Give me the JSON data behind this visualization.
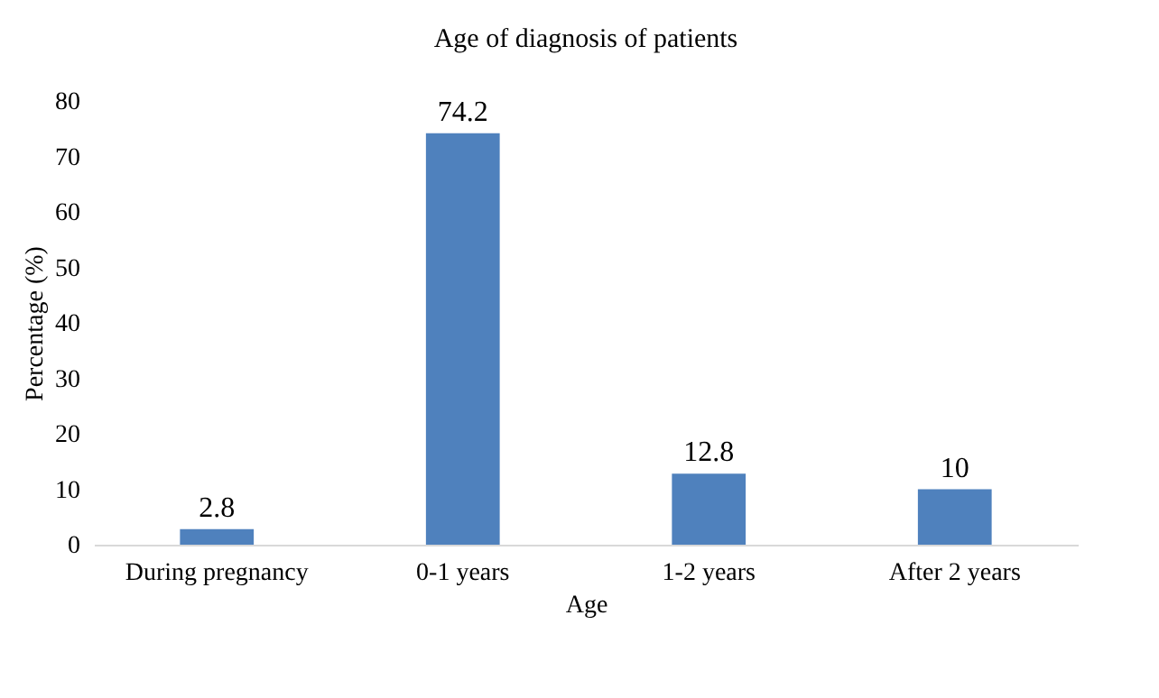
{
  "chart_data": {
    "type": "bar",
    "title": "Age of diagnosis of patients",
    "xlabel": "Age",
    "ylabel": "Percentage (%)",
    "categories": [
      "During pregnancy",
      "0-1 years",
      "1-2 years",
      "After 2 years"
    ],
    "values": [
      2.8,
      74.2,
      12.8,
      10
    ],
    "color": "#4f81bd",
    "ylim": [
      0,
      80
    ],
    "yticks": [
      0,
      10,
      20,
      30,
      40,
      50,
      60,
      70,
      80
    ],
    "grid": false,
    "data_labels": true
  }
}
